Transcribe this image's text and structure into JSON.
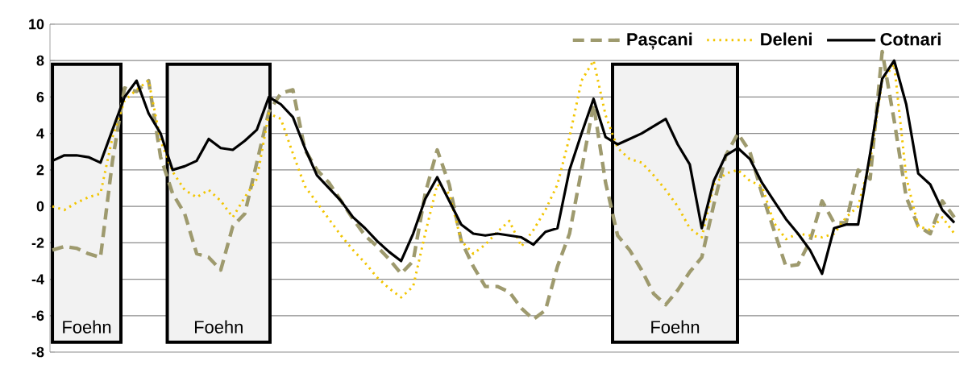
{
  "chart_data": {
    "type": "line",
    "categories": [
      null,
      null,
      null,
      null,
      null,
      null,
      null,
      null,
      null,
      null,
      null,
      null,
      null,
      null,
      null,
      null,
      null,
      null,
      null,
      null,
      null,
      null,
      null,
      null,
      null,
      null,
      null,
      null,
      null,
      null,
      null,
      null,
      null,
      null,
      null,
      null,
      null,
      null,
      null,
      null,
      null,
      null,
      null,
      null,
      null,
      null,
      null,
      null,
      null,
      null,
      null,
      null,
      null,
      null,
      null,
      null,
      null,
      null,
      null,
      null,
      null,
      null,
      null,
      null,
      null,
      null,
      null,
      null,
      null,
      null,
      null,
      null,
      null,
      null,
      null,
      null
    ],
    "ylim": [
      -8,
      10
    ],
    "yticks": [
      -8,
      -6,
      -4,
      -2,
      0,
      2,
      4,
      6,
      8,
      10
    ],
    "grid": "y",
    "legend": "top right",
    "marker": "none",
    "annotations": [
      "Foehn",
      "Foehn",
      "Foehn"
    ],
    "series": [
      {
        "name": "Pașcani",
        "color": "#9e9a6e",
        "line_style": "dashed",
        "values": [
          -2.4,
          -2.2,
          -2.3,
          -2.6,
          -2.8,
          2.5,
          6.5,
          6.3,
          6.9,
          2.7,
          0.7,
          -0.4,
          -2.6,
          -2.8,
          -3.5,
          -1.1,
          -0.4,
          2.4,
          5.2,
          6.2,
          6.4,
          3.1,
          2.0,
          1.3,
          0.3,
          -0.7,
          -1.6,
          -2.2,
          -2.9,
          -3.7,
          -3.0,
          0.7,
          3.1,
          1.2,
          -1.9,
          -3.3,
          -4.4,
          -4.4,
          -4.7,
          -5.6,
          -6.2,
          -5.7,
          -3.3,
          -1.5,
          2.0,
          5.6,
          1.3,
          -1.6,
          -2.4,
          -3.5,
          -4.8,
          -5.4,
          -4.6,
          -3.6,
          -2.8,
          0.1,
          2.8,
          4.0,
          3.0,
          0.7,
          -1.3,
          -3.3,
          -3.2,
          -1.9,
          0.3,
          -0.9,
          -0.9,
          2.0,
          1.5,
          8.5,
          4.7,
          0.5,
          -1.1,
          -1.5,
          0.3,
          -0.6
        ]
      },
      {
        "name": "Deleni",
        "color": "#f2c500",
        "line_style": "dotted",
        "values": [
          0,
          -0.2,
          0.2,
          0.5,
          0.7,
          3.8,
          5.8,
          6.4,
          6.9,
          3.6,
          1.9,
          0.9,
          0.5,
          0.9,
          0.3,
          -0.6,
          0.5,
          1.5,
          5.1,
          4.8,
          2.9,
          1.1,
          0.2,
          -0.7,
          -1.6,
          -2.4,
          -3.1,
          -3.9,
          -4.5,
          -5.0,
          -4.4,
          -1.5,
          1.2,
          0.7,
          -1.9,
          -2.6,
          -2.1,
          -1.4,
          -0.8,
          -2.2,
          -1.3,
          -0.2,
          1.2,
          3.8,
          6.9,
          8.0,
          5.0,
          3.2,
          2.6,
          2.4,
          1.7,
          0.9,
          0,
          -1.2,
          -1.7,
          1.2,
          1.8,
          2.0,
          1.4,
          1.1,
          -0.9,
          -1.8,
          -1.5,
          -1.6,
          -1.7,
          -1.5,
          -0.6,
          0,
          2.5,
          6.9,
          7.8,
          1.6,
          -1.1,
          -1.3,
          -0.6,
          -1.5
        ]
      },
      {
        "name": "Cotnari",
        "color": "#000000",
        "line_style": "solid",
        "values": [
          2.5,
          2.8,
          2.8,
          2.7,
          2.4,
          4.2,
          6.0,
          6.9,
          5.1,
          4.0,
          2.0,
          2.2,
          2.5,
          3.7,
          3.2,
          3.1,
          3.6,
          4.2,
          6.0,
          5.6,
          4.9,
          3.2,
          1.7,
          1.0,
          0.3,
          -0.6,
          -1.2,
          -1.9,
          -2.5,
          -3.0,
          -1.5,
          0.4,
          1.6,
          0.3,
          -1.0,
          -1.5,
          -1.6,
          -1.5,
          -1.6,
          -1.7,
          -2.1,
          -1.4,
          -1.2,
          2.0,
          4.0,
          5.9,
          3.8,
          3.4,
          3.7,
          4.0,
          4.4,
          4.8,
          3.4,
          2.3,
          -1.2,
          1.4,
          2.8,
          3.2,
          2.6,
          1.3,
          0.3,
          -0.7,
          -1.5,
          -2.4,
          -3.7,
          -1.2,
          -1.0,
          -1.0,
          2.9,
          7.0,
          8.0,
          5.6,
          1.8,
          1.2,
          -0.2,
          -0.9
        ]
      }
    ]
  }
}
